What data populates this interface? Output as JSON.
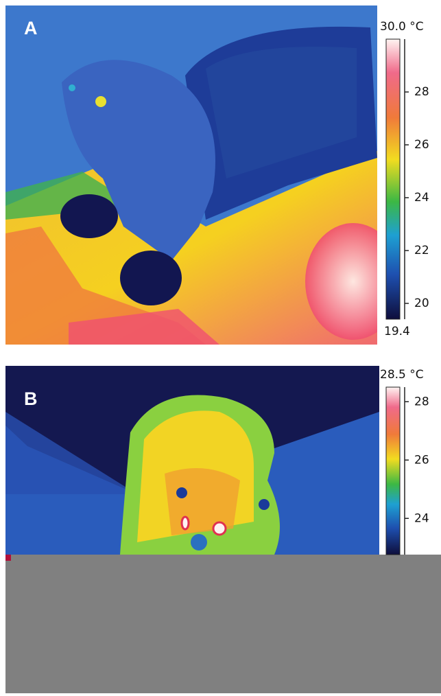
{
  "panels": [
    {
      "label": "A",
      "scale": {
        "max": {
          "value": 30.0,
          "label": "30.0 °C"
        },
        "min": 19.4,
        "ticks": [
          28,
          26,
          24,
          22,
          20
        ]
      }
    },
    {
      "label": "B",
      "scale": {
        "max": {
          "value": 28.5,
          "label": "28.5 °C"
        },
        "ticks": [
          28,
          26,
          24
        ]
      }
    }
  ]
}
